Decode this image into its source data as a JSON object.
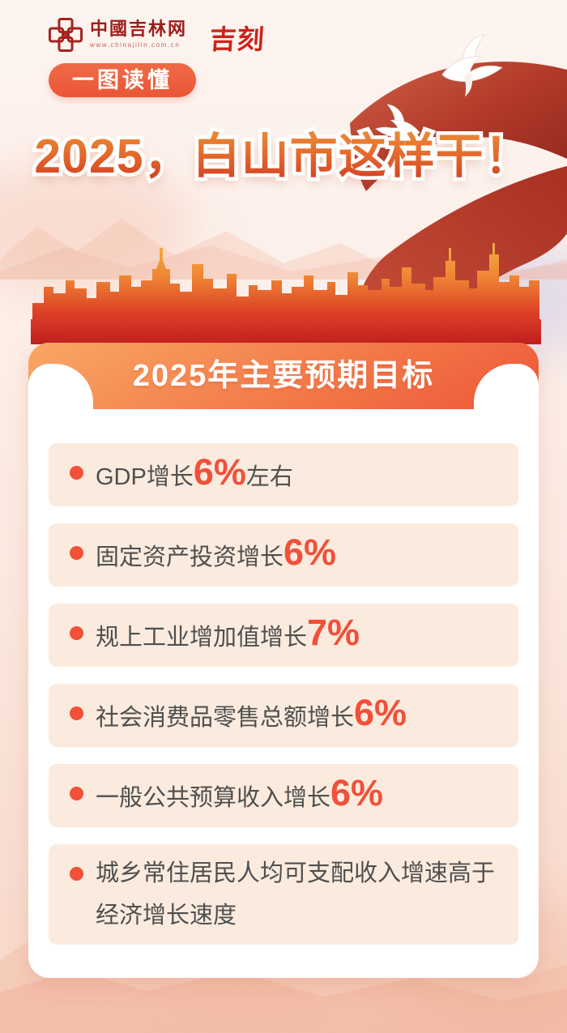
{
  "header": {
    "site_name": "中國吉林网",
    "site_url": "www.chinajilin.com.cn",
    "brand_logo": "吉刻",
    "badge": "一图读懂"
  },
  "title": "2025，白山市这样干！",
  "section": {
    "heading": "2025年主要预期目标",
    "items": [
      {
        "pre": "GDP增长",
        "value": "6%",
        "post": "左右"
      },
      {
        "pre": "固定资产投资增长",
        "value": "6%",
        "post": ""
      },
      {
        "pre": "规上工业增加值增长",
        "value": "7%",
        "post": ""
      },
      {
        "pre": "社会消费品零售总额增长",
        "value": "6%",
        "post": ""
      },
      {
        "pre": "一般公共预算收入增长",
        "value": "6%",
        "post": ""
      },
      {
        "pre": "城乡常住居民人均可支配收入增速高于经济增长速度",
        "value": "",
        "post": ""
      }
    ]
  },
  "colors": {
    "accent_orange": "#ee5a3a",
    "deep_red": "#c01d1f",
    "ribbon_red": "#9e2d22",
    "item_background": "#fbebde",
    "value_red": "#f2503a",
    "text_dark": "#4f4f4f"
  }
}
